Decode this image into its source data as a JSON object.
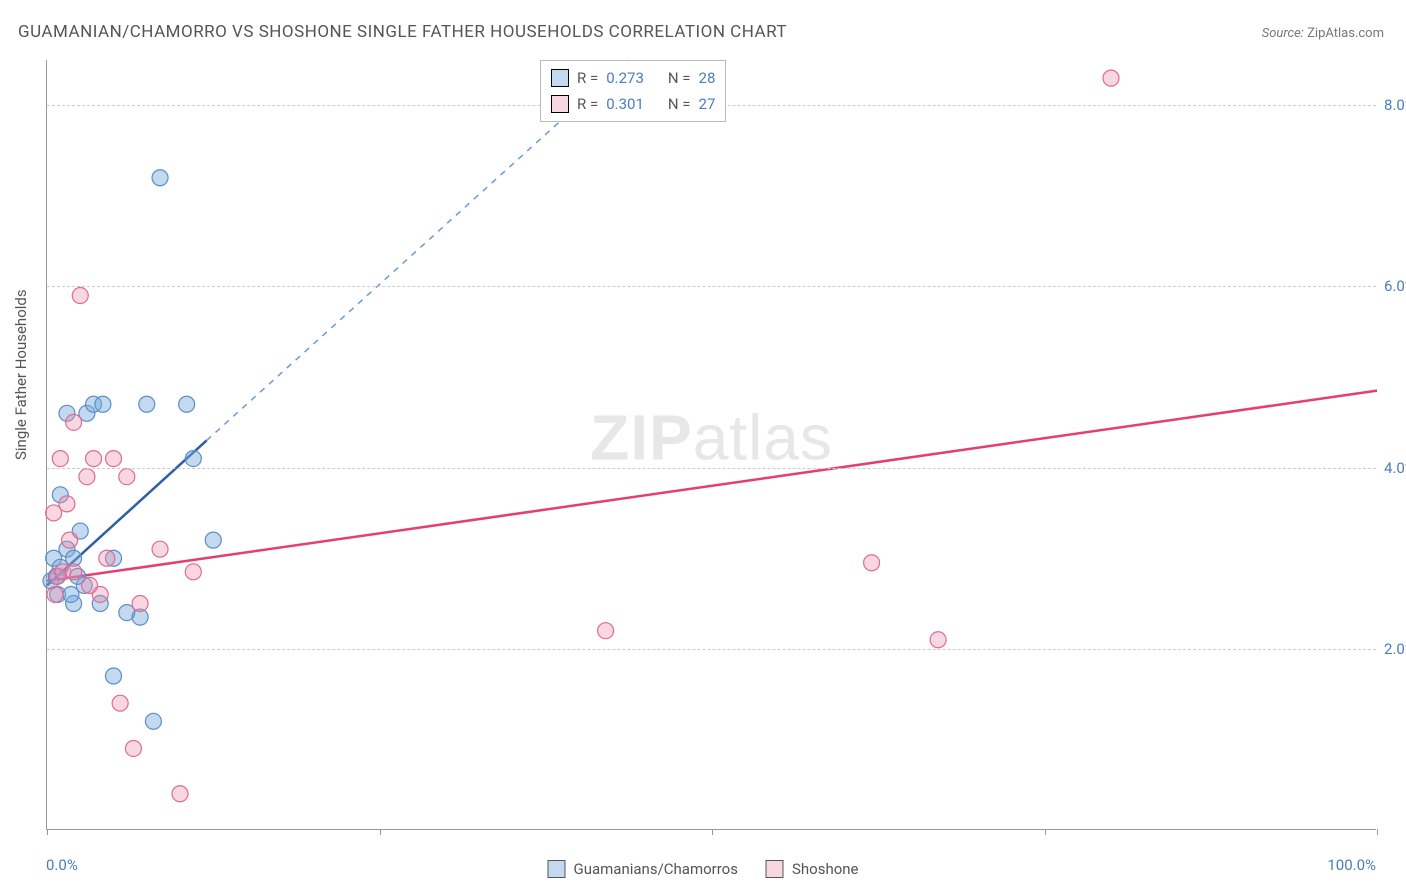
{
  "title": "GUAMANIAN/CHAMORRO VS SHOSHONE SINGLE FATHER HOUSEHOLDS CORRELATION CHART",
  "source_label": "Source:",
  "source_value": "ZipAtlas.com",
  "y_axis_title": "Single Father Households",
  "watermark_bold": "ZIP",
  "watermark_light": "atlas",
  "chart": {
    "type": "scatter",
    "background_color": "#ffffff",
    "grid_color": "#cccccc",
    "axis_color": "#999999",
    "tick_label_color": "#4a7ebb",
    "xlim": [
      0,
      100
    ],
    "ylim": [
      0,
      8.5
    ],
    "y_ticks": [
      2.0,
      4.0,
      6.0,
      8.0
    ],
    "y_tick_labels": [
      "2.0%",
      "4.0%",
      "6.0%",
      "8.0%"
    ],
    "x_ticks": [
      0,
      25,
      50,
      75,
      100
    ],
    "x_min_label": "0.0%",
    "x_max_label": "100.0%",
    "label_fontsize": 15,
    "title_fontsize": 17,
    "series": [
      {
        "name": "Guamanians/Chamorros",
        "legend_label": "Guamanians/Chamorros",
        "marker_fill": "rgba(120,170,220,0.45)",
        "marker_stroke": "#5b8ec9",
        "marker_radius": 8,
        "line_color": "#2f5fa3",
        "line_dash_color": "#6a9bd8",
        "line_width": 2.5,
        "r_value": "0.273",
        "n_value": "28",
        "regression_solid": {
          "x1": 0,
          "y1": 2.7,
          "x2": 12,
          "y2": 4.3
        },
        "regression_dash": {
          "x1": 12,
          "y1": 4.3,
          "x2": 55,
          "y2": 10.0
        },
        "points": [
          [
            0.3,
            2.75
          ],
          [
            0.5,
            3.0
          ],
          [
            0.8,
            2.6
          ],
          [
            1.0,
            2.9
          ],
          [
            1.0,
            3.7
          ],
          [
            1.5,
            3.1
          ],
          [
            1.5,
            4.6
          ],
          [
            2.0,
            3.0
          ],
          [
            2.0,
            2.5
          ],
          [
            2.5,
            3.3
          ],
          [
            2.8,
            2.7
          ],
          [
            3.0,
            4.6
          ],
          [
            3.5,
            4.7
          ],
          [
            4.0,
            2.5
          ],
          [
            4.2,
            4.7
          ],
          [
            5.0,
            1.7
          ],
          [
            5.0,
            3.0
          ],
          [
            6.0,
            2.4
          ],
          [
            7.0,
            2.35
          ],
          [
            7.5,
            4.7
          ],
          [
            8.0,
            1.2
          ],
          [
            8.5,
            7.2
          ],
          [
            10.5,
            4.7
          ],
          [
            11.0,
            4.1
          ],
          [
            12.5,
            3.2
          ],
          [
            0.7,
            2.8
          ],
          [
            1.8,
            2.6
          ],
          [
            2.3,
            2.8
          ]
        ]
      },
      {
        "name": "Shoshone",
        "legend_label": "Shoshone",
        "marker_fill": "rgba(235,140,170,0.35)",
        "marker_stroke": "#e06b94",
        "marker_radius": 8,
        "line_color": "#e43f6f",
        "line_width": 2.5,
        "r_value": "0.301",
        "n_value": "27",
        "regression_solid": {
          "x1": 0,
          "y1": 2.75,
          "x2": 100,
          "y2": 4.85
        },
        "points": [
          [
            0.5,
            3.5
          ],
          [
            0.8,
            2.8
          ],
          [
            1.0,
            4.1
          ],
          [
            1.2,
            2.85
          ],
          [
            1.5,
            3.6
          ],
          [
            2.0,
            4.5
          ],
          [
            2.0,
            2.85
          ],
          [
            2.5,
            5.9
          ],
          [
            3.0,
            3.9
          ],
          [
            3.5,
            4.1
          ],
          [
            4.0,
            2.6
          ],
          [
            4.5,
            3.0
          ],
          [
            5.0,
            4.1
          ],
          [
            5.5,
            1.4
          ],
          [
            6.0,
            3.9
          ],
          [
            6.5,
            0.9
          ],
          [
            7.0,
            2.5
          ],
          [
            8.5,
            3.1
          ],
          [
            10.0,
            0.4
          ],
          [
            11.0,
            2.85
          ],
          [
            42.0,
            2.2
          ],
          [
            62.0,
            2.95
          ],
          [
            67.0,
            2.1
          ],
          [
            80.0,
            8.3
          ],
          [
            1.7,
            3.2
          ],
          [
            3.2,
            2.7
          ],
          [
            0.6,
            2.6
          ]
        ]
      }
    ]
  },
  "legend_top": {
    "r_label": "R =",
    "n_label": "N ="
  }
}
